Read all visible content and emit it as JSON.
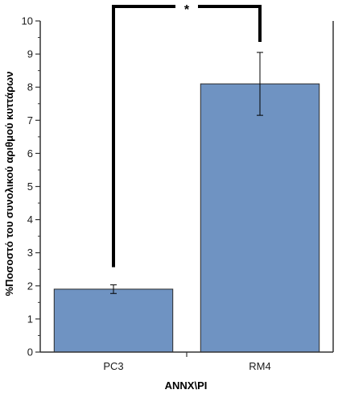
{
  "chart_data": {
    "type": "bar",
    "categories": [
      "PC3",
      "RM4"
    ],
    "values": [
      1.9,
      8.1
    ],
    "errors": [
      0.13,
      0.95
    ],
    "xlabel": "ANNX\\PI",
    "ylabel": "%Ποσοστό του συνολικού αριθμού κυττάρων",
    "ylim": [
      0,
      10
    ],
    "yticks": [
      0,
      1,
      2,
      3,
      4,
      5,
      6,
      7,
      8,
      9,
      10
    ],
    "grid": false,
    "legend": "none",
    "significance": {
      "between": [
        "PC3",
        "RM4"
      ],
      "label": "*"
    },
    "colors": {
      "bar": "#6f93c2",
      "bar_stroke": "#2a2a2a",
      "axis": "#333333",
      "bracket": "#000000"
    }
  }
}
